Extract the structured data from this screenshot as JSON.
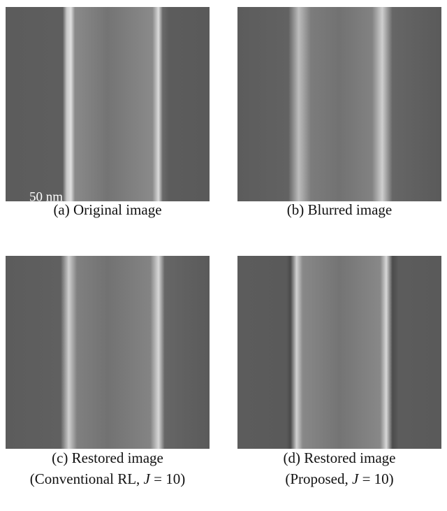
{
  "scale_bar": "50 nm",
  "panels": [
    {
      "caption": [
        "(a) Original image"
      ]
    },
    {
      "caption": [
        "(b) Blurred image"
      ]
    },
    {
      "caption": [
        "(c) Restored image",
        {
          "before": "(Conventional RL, ",
          "variable": "J",
          "after": " = 10)"
        }
      ]
    },
    {
      "caption": [
        "(d) Restored image",
        {
          "before": "(Proposed, ",
          "variable": "J",
          "after": " = 10)"
        }
      ]
    }
  ]
}
